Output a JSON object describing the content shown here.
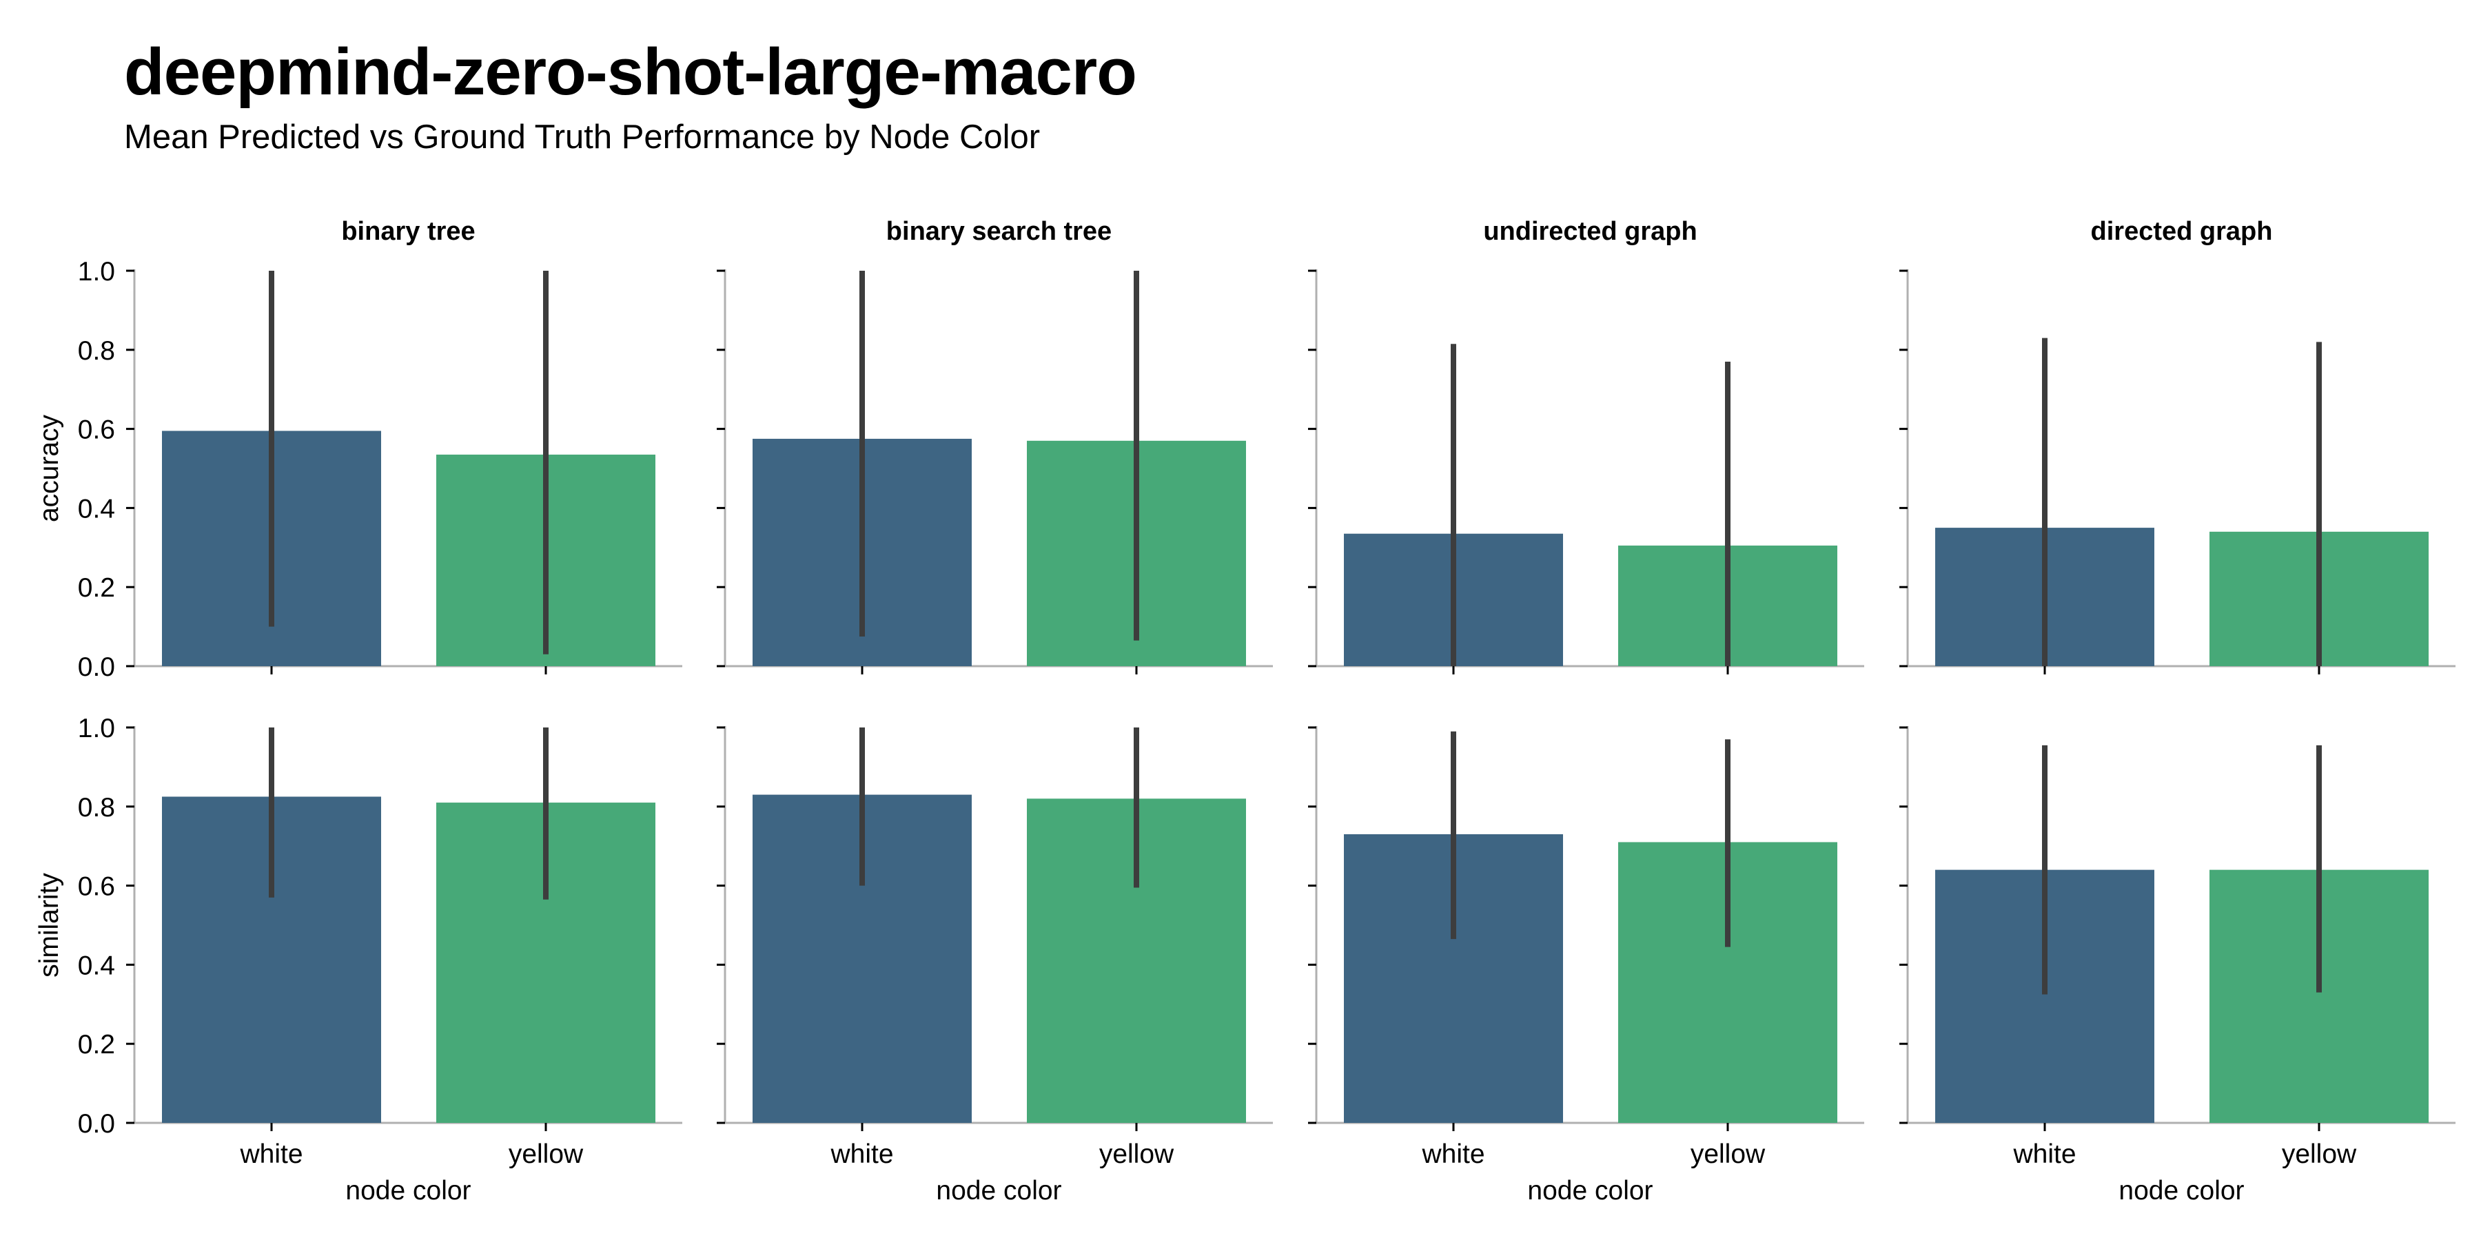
{
  "title": "deepmind-zero-shot-large-macro",
  "subtitle": "Mean Predicted vs Ground Truth Performance by Node Color",
  "colors": {
    "white": "#3e6583",
    "yellow": "#47a978",
    "errorbar": "#3d3d3d",
    "axis": "#b0b0b0"
  },
  "chart_data": {
    "type": "bar",
    "panels": [
      "binary tree",
      "binary search tree",
      "undirected graph",
      "directed graph"
    ],
    "metrics": [
      "accuracy",
      "similarity"
    ],
    "categories": [
      "white",
      "yellow"
    ],
    "xlabel": "node color",
    "ylim": [
      0,
      1
    ],
    "yticks": [
      "0.0",
      "0.2",
      "0.4",
      "0.6",
      "0.8",
      "1.0"
    ],
    "series": [
      {
        "panel": "binary tree",
        "metric": "accuracy",
        "values": [
          0.595,
          0.535
        ],
        "err_low": [
          0.1,
          0.03
        ],
        "err_high": [
          1.0,
          1.0
        ]
      },
      {
        "panel": "binary search tree",
        "metric": "accuracy",
        "values": [
          0.575,
          0.57
        ],
        "err_low": [
          0.075,
          0.065
        ],
        "err_high": [
          1.0,
          1.0
        ]
      },
      {
        "panel": "undirected graph",
        "metric": "accuracy",
        "values": [
          0.335,
          0.305
        ],
        "err_low": [
          0.0,
          0.0
        ],
        "err_high": [
          0.815,
          0.77
        ]
      },
      {
        "panel": "directed graph",
        "metric": "accuracy",
        "values": [
          0.35,
          0.34
        ],
        "err_low": [
          0.0,
          0.0
        ],
        "err_high": [
          0.83,
          0.82
        ]
      },
      {
        "panel": "binary tree",
        "metric": "similarity",
        "values": [
          0.825,
          0.81
        ],
        "err_low": [
          0.57,
          0.565
        ],
        "err_high": [
          1.0,
          1.0
        ]
      },
      {
        "panel": "binary search tree",
        "metric": "similarity",
        "values": [
          0.83,
          0.82
        ],
        "err_low": [
          0.6,
          0.595
        ],
        "err_high": [
          1.0,
          1.0
        ]
      },
      {
        "panel": "undirected graph",
        "metric": "similarity",
        "values": [
          0.73,
          0.71
        ],
        "err_low": [
          0.465,
          0.445
        ],
        "err_high": [
          0.99,
          0.97
        ]
      },
      {
        "panel": "directed graph",
        "metric": "similarity",
        "values": [
          0.64,
          0.64
        ],
        "err_low": [
          0.325,
          0.33
        ],
        "err_high": [
          0.955,
          0.955
        ]
      }
    ]
  }
}
